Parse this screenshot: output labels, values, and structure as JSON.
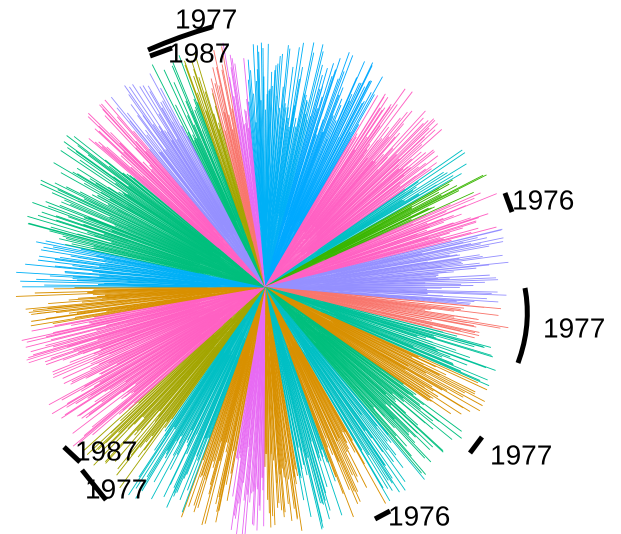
{
  "annotations": [
    {
      "label": "1977"
    },
    {
      "label": "1987"
    },
    {
      "label": "1976"
    },
    {
      "label": "1977"
    },
    {
      "label": "1977"
    },
    {
      "label": "1976"
    },
    {
      "label": "1987"
    },
    {
      "label": "1977"
    }
  ]
}
